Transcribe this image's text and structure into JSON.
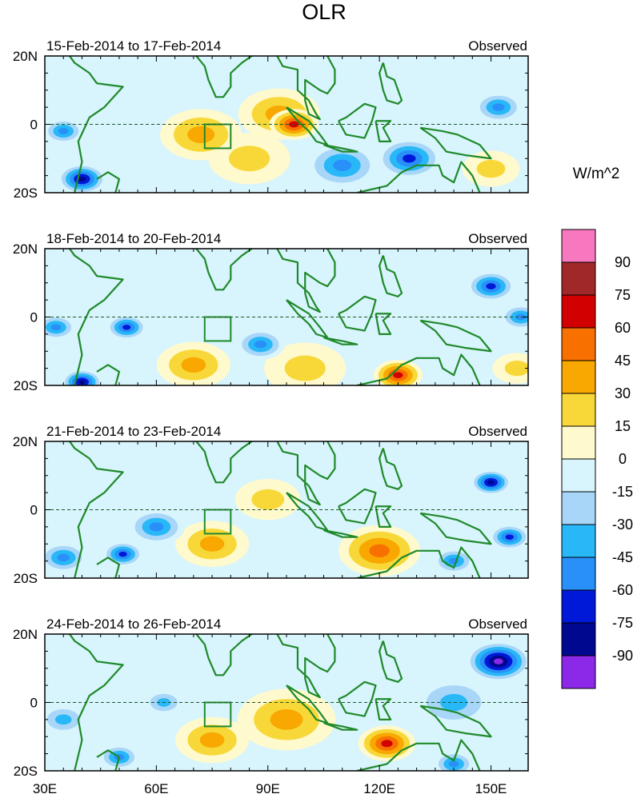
{
  "chart_data": {
    "type": "heatmap",
    "title": "OLR",
    "units_label": "W/m^2",
    "x_ticks": [
      30,
      60,
      90,
      120,
      150
    ],
    "x_tick_labels": [
      "30E",
      "60E",
      "90E",
      "120E",
      "150E"
    ],
    "y_ticks": [
      20,
      0,
      -20
    ],
    "y_tick_labels": [
      "20N",
      "0",
      "20S"
    ],
    "xlim": [
      30,
      160
    ],
    "ylim": [
      -20,
      20
    ],
    "reference_line_lat": 0,
    "box_region": {
      "lon": [
        73,
        80
      ],
      "lat": [
        -7,
        0
      ]
    },
    "colorbar": {
      "levels": [
        90,
        75,
        60,
        45,
        30,
        15,
        0,
        -15,
        -30,
        -45,
        -60,
        -75,
        -90
      ],
      "level_labels": [
        "90",
        "75",
        "60",
        "45",
        "30",
        "15",
        "0",
        "-15",
        "-30",
        "-45",
        "-60",
        "-75",
        "-90"
      ],
      "colors": [
        "#f878c0",
        "#a02828",
        "#d20000",
        "#f87000",
        "#f8a800",
        "#f8d838",
        "#fffacd",
        "#d8f4fc",
        "#a8d6f8",
        "#28b8f8",
        "#2890f8",
        "#0018d8",
        "#000890",
        "#8c28e8"
      ]
    },
    "panels": [
      {
        "period": "15-Feb-2014 to 17-Feb-2014",
        "label": "Observed",
        "anomaly_centers": [
          {
            "lon": 40,
            "lat": -16,
            "value": -80,
            "radius": 6
          },
          {
            "lon": 35,
            "lat": -2,
            "value": -60,
            "radius": 5
          },
          {
            "lon": 97,
            "lat": 0,
            "value": 75,
            "radius": 6
          },
          {
            "lon": 93,
            "lat": 3,
            "value": 45,
            "radius": 10
          },
          {
            "lon": 72,
            "lat": -3,
            "value": 35,
            "radius": 10
          },
          {
            "lon": 128,
            "lat": -10,
            "value": -70,
            "radius": 8
          },
          {
            "lon": 110,
            "lat": -12,
            "value": -55,
            "radius": 9
          },
          {
            "lon": 152,
            "lat": 5,
            "value": -55,
            "radius": 6
          },
          {
            "lon": 150,
            "lat": -13,
            "value": 30,
            "radius": 7
          },
          {
            "lon": 85,
            "lat": -10,
            "value": 20,
            "radius": 10
          }
        ]
      },
      {
        "period": "18-Feb-2014 to 20-Feb-2014",
        "label": "Observed",
        "anomaly_centers": [
          {
            "lon": 40,
            "lat": -19,
            "value": -85,
            "radius": 5
          },
          {
            "lon": 33,
            "lat": -3,
            "value": -60,
            "radius": 5
          },
          {
            "lon": 52,
            "lat": -3,
            "value": -65,
            "radius": 5
          },
          {
            "lon": 88,
            "lat": -8,
            "value": -60,
            "radius": 6
          },
          {
            "lon": 125,
            "lat": -17,
            "value": 65,
            "radius": 6
          },
          {
            "lon": 70,
            "lat": -14,
            "value": 35,
            "radius": 9
          },
          {
            "lon": 150,
            "lat": 9,
            "value": -75,
            "radius": 6
          },
          {
            "lon": 158,
            "lat": 0,
            "value": -60,
            "radius": 5
          },
          {
            "lon": 157,
            "lat": -15,
            "value": 30,
            "radius": 6
          },
          {
            "lon": 100,
            "lat": -15,
            "value": 25,
            "radius": 10
          }
        ]
      },
      {
        "period": "21-Feb-2014 to 23-Feb-2014",
        "label": "Observed",
        "anomaly_centers": [
          {
            "lon": 51,
            "lat": -13,
            "value": -70,
            "radius": 5
          },
          {
            "lon": 60,
            "lat": -5,
            "value": -55,
            "radius": 7
          },
          {
            "lon": 75,
            "lat": -10,
            "value": 40,
            "radius": 9
          },
          {
            "lon": 120,
            "lat": -12,
            "value": 50,
            "radius": 10
          },
          {
            "lon": 150,
            "lat": 8,
            "value": -80,
            "radius": 5
          },
          {
            "lon": 155,
            "lat": -8,
            "value": -70,
            "radius": 5
          },
          {
            "lon": 140,
            "lat": -15,
            "value": -60,
            "radius": 5
          },
          {
            "lon": 90,
            "lat": 3,
            "value": 30,
            "radius": 8
          },
          {
            "lon": 35,
            "lat": -14,
            "value": -50,
            "radius": 6
          }
        ]
      },
      {
        "period": "24-Feb-2014 to 26-Feb-2014",
        "label": "Observed",
        "anomaly_centers": [
          {
            "lon": 152,
            "lat": 12,
            "value": -95,
            "radius": 8
          },
          {
            "lon": 122,
            "lat": -12,
            "value": 75,
            "radius": 7
          },
          {
            "lon": 95,
            "lat": -5,
            "value": 45,
            "radius": 12
          },
          {
            "lon": 75,
            "lat": -11,
            "value": 40,
            "radius": 9
          },
          {
            "lon": 50,
            "lat": -16,
            "value": -60,
            "radius": 5
          },
          {
            "lon": 62,
            "lat": 0,
            "value": -45,
            "radius": 5
          },
          {
            "lon": 140,
            "lat": -18,
            "value": -60,
            "radius": 5
          },
          {
            "lon": 140,
            "lat": 0,
            "value": -40,
            "radius": 10
          },
          {
            "lon": 35,
            "lat": -5,
            "value": -40,
            "radius": 6
          }
        ]
      }
    ]
  }
}
